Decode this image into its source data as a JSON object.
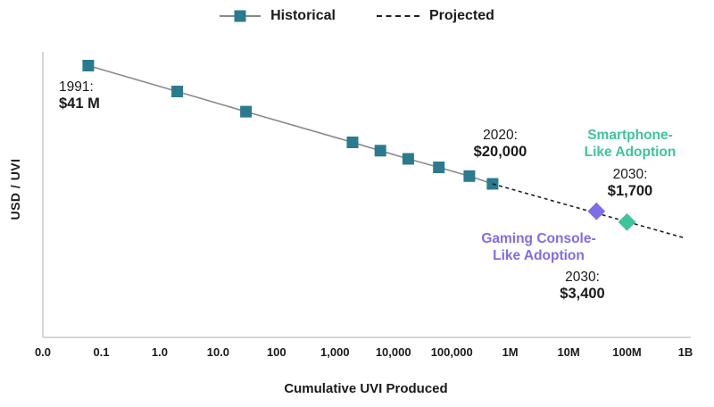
{
  "legend": {
    "historical_label": "Historical",
    "projected_label": "Projected"
  },
  "axes": {
    "y_label": "USD / UVI",
    "x_label": "Cumulative UVI Produced"
  },
  "annotations": {
    "point_1991": {
      "year": "1991:",
      "value": "$41 M"
    },
    "point_2020": {
      "year": "2020:",
      "value": "$20,000"
    },
    "smartphone": {
      "title_line1": "Smartphone-",
      "title_line2": "Like Adoption",
      "year": "2030:",
      "value": "$1,700"
    },
    "gaming": {
      "title_line1": "Gaming Console-",
      "title_line2": "Like Adoption",
      "year": "2030:",
      "value": "$3,400"
    }
  },
  "colors": {
    "historical_marker": "#2a7b8d",
    "historical_line": "#8a8a8a",
    "projected_line": "#1f1f1f",
    "smartphone_accent": "#3ec49b",
    "gaming_accent": "#7d6ee8",
    "text": "#1a1a1a",
    "axis": "#c9c9c9"
  },
  "chart_data": {
    "type": "line",
    "title": "",
    "xlabel": "Cumulative UVI Produced",
    "ylabel": "USD / UVI",
    "x_scale": "log",
    "y_scale": "log",
    "legend_position": "top",
    "grid": false,
    "x_range_log10": [
      -2,
      9
    ],
    "y_range_log10": [
      0,
      8
    ],
    "x_ticks": [
      {
        "label": "0.0",
        "value": 0.01
      },
      {
        "label": "0.1",
        "value": 0.1
      },
      {
        "label": "1.0",
        "value": 1
      },
      {
        "label": "10.0",
        "value": 10
      },
      {
        "label": "100",
        "value": 100
      },
      {
        "label": "1,000",
        "value": 1000
      },
      {
        "label": "10,000",
        "value": 10000
      },
      {
        "label": "100,000",
        "value": 100000
      },
      {
        "label": "1M",
        "value": 1000000
      },
      {
        "label": "10M",
        "value": 10000000
      },
      {
        "label": "100M",
        "value": 100000000
      },
      {
        "label": "1B",
        "value": 1000000000
      }
    ],
    "series": [
      {
        "name": "Historical",
        "style": "solid",
        "marker": "square",
        "line_color": "#8a8a8a",
        "marker_color": "#2a7b8d",
        "points": [
          {
            "x": 0.06,
            "y": 41000000,
            "note": "1991: $41 M"
          },
          {
            "x": 2,
            "y": 7700000
          },
          {
            "x": 30,
            "y": 2100000
          },
          {
            "x": 2000,
            "y": 290000
          },
          {
            "x": 6000,
            "y": 170000
          },
          {
            "x": 18000,
            "y": 100000
          },
          {
            "x": 60000,
            "y": 58000
          },
          {
            "x": 200000,
            "y": 33000
          },
          {
            "x": 500000,
            "y": 20000,
            "note": "2020: $20,000"
          }
        ]
      },
      {
        "name": "Projected",
        "style": "dashed",
        "marker": "none",
        "line_color": "#1f1f1f",
        "points": [
          {
            "x": 500000,
            "y": 20000
          },
          {
            "x": 1000000000,
            "y": 600
          }
        ]
      },
      {
        "name": "Gaming Console-Like Adoption",
        "style": "none",
        "marker": "diamond",
        "marker_color": "#7d6ee8",
        "points": [
          {
            "x": 30000000,
            "y": 3400,
            "note": "2030: $3,400"
          }
        ]
      },
      {
        "name": "Smartphone-Like Adoption",
        "style": "none",
        "marker": "diamond",
        "marker_color": "#3ec49b",
        "points": [
          {
            "x": 100000000,
            "y": 1700,
            "note": "2030: $1,700"
          }
        ]
      }
    ]
  }
}
